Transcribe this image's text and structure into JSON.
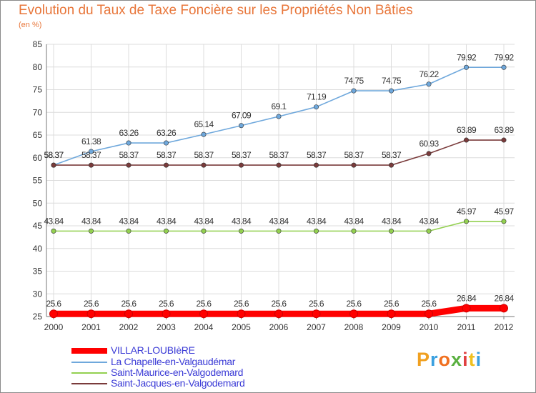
{
  "title": "Evolution du Taux de Taxe Foncière sur les Propriétés Non Bâties",
  "unit_label": "(en %)",
  "logo": {
    "text": "Proxiti",
    "colors": [
      "#f0a020",
      "#3aa0e0",
      "#f07020",
      "#5ab040",
      "#e04040",
      "#f0c020",
      "#3aa0e0"
    ]
  },
  "chart_data": {
    "type": "line",
    "x": [
      "2000",
      "2001",
      "2002",
      "2003",
      "2004",
      "2005",
      "2006",
      "2007",
      "2008",
      "2009",
      "2010",
      "2011",
      "2012"
    ],
    "ylim": [
      25,
      85
    ],
    "yticks": [
      25,
      30,
      35,
      40,
      45,
      50,
      55,
      60,
      65,
      70,
      75,
      80,
      85
    ],
    "grid": true,
    "legend_position": "bottom-left",
    "series": [
      {
        "name": "VILLAR-LOUBIèRE",
        "color": "#ff0000",
        "values": [
          25.6,
          25.6,
          25.6,
          25.6,
          25.6,
          25.6,
          25.6,
          25.6,
          25.6,
          25.6,
          25.6,
          26.84,
          26.84
        ],
        "labels": [
          "25.6",
          "25.6",
          "25.6",
          "25.6",
          "25.6",
          "25.6",
          "25.6",
          "25.6",
          "25.6",
          "25.6",
          "25.6",
          "26.84",
          "26.84"
        ]
      },
      {
        "name": "La Chapelle-en-Valgaudémar",
        "color": "#6fa8dc",
        "values": [
          58.37,
          61.38,
          63.26,
          63.26,
          65.14,
          67.09,
          69.1,
          71.19,
          74.75,
          74.75,
          76.22,
          79.92,
          79.92
        ],
        "labels": [
          "58.37",
          "61.38",
          "63.26",
          "63.26",
          "65.14",
          "67.09",
          "69.1",
          "71.19",
          "74.75",
          "74.75",
          "76.22",
          "79.92",
          "79.92"
        ]
      },
      {
        "name": "Saint-Maurice-en-Valgodemard",
        "color": "#93d050",
        "values": [
          43.84,
          43.84,
          43.84,
          43.84,
          43.84,
          43.84,
          43.84,
          43.84,
          43.84,
          43.84,
          43.84,
          45.97,
          45.97
        ],
        "labels": [
          "43.84",
          "43.84",
          "43.84",
          "43.84",
          "43.84",
          "43.84",
          "43.84",
          "43.84",
          "43.84",
          "43.84",
          "43.84",
          "45.97",
          "45.97"
        ]
      },
      {
        "name": "Saint-Jacques-en-Valgodemard",
        "color": "#7a3b3b",
        "values": [
          58.37,
          58.37,
          58.37,
          58.37,
          58.37,
          58.37,
          58.37,
          58.37,
          58.37,
          58.37,
          60.93,
          63.89,
          63.89
        ],
        "labels": [
          "58.37",
          "58.37",
          "58.37",
          "58.37",
          "58.37",
          "58.37",
          "58.37",
          "58.37",
          "58.37",
          "58.37",
          "60.93",
          "63.89",
          "63.89"
        ]
      }
    ]
  }
}
